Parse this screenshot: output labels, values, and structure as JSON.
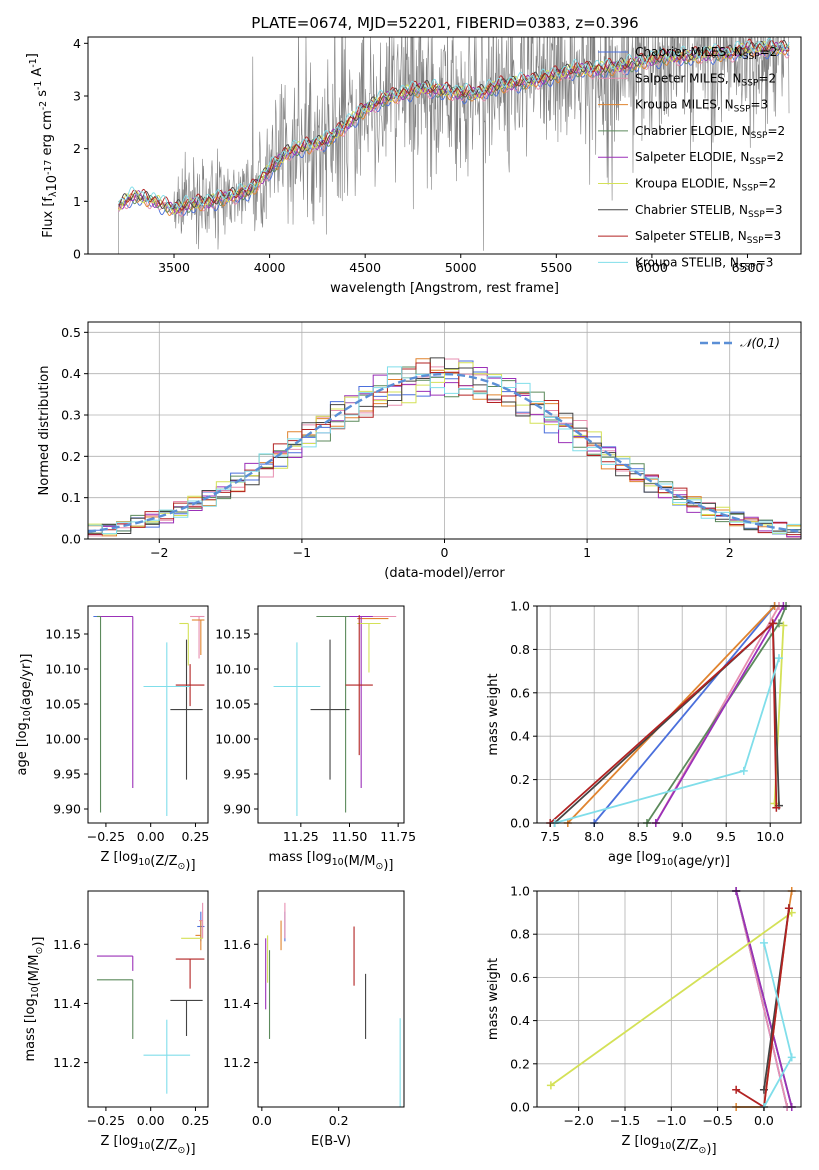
{
  "figure": {
    "title": "PLATE=0674, MJD=52201, FIBERID=0383, z=0.396"
  },
  "series_styles": [
    {
      "name": "Chabrier MILES, N$_{SSP}$=2",
      "label_main": "Chabrier MILES, N",
      "label_sub": "SSP",
      "label_tail": "=2",
      "color": "#4a6fdc"
    },
    {
      "name": "Salpeter MILES, N$_{SSP}$=2",
      "label_main": "Salpeter MILES, N",
      "label_sub": "SSP",
      "label_tail": "=2",
      "color": "#e78fb0"
    },
    {
      "name": "Kroupa MILES, N$_{SSP}$=3",
      "label_main": "Kroupa MILES, N",
      "label_sub": "SSP",
      "label_tail": "=3",
      "color": "#e0842f"
    },
    {
      "name": "Chabrier ELODIE, N$_{SSP}$=2",
      "label_main": "Chabrier ELODIE, N",
      "label_sub": "SSP",
      "label_tail": "=2",
      "color": "#5c8a5c"
    },
    {
      "name": "Salpeter ELODIE, N$_{SSP}$=2",
      "label_main": "Salpeter ELODIE, N",
      "label_sub": "SSP",
      "label_tail": "=2",
      "color": "#9b30b8"
    },
    {
      "name": "Kroupa ELODIE, N$_{SSP}$=2",
      "label_main": "Kroupa ELODIE, N",
      "label_sub": "SSP",
      "label_tail": "=2",
      "color": "#d4e157"
    },
    {
      "name": "Chabrier STELIB, N$_{SSP}$=3",
      "label_main": "Chabrier STELIB, N",
      "label_sub": "SSP",
      "label_tail": "=3",
      "color": "#444444"
    },
    {
      "name": "Salpeter STELIB, N$_{SSP}$=3",
      "label_main": "Salpeter STELIB, N",
      "label_sub": "SSP",
      "label_tail": "=3",
      "color": "#b22222"
    },
    {
      "name": "Kroupa STELIB, N$_{SSP}$=3",
      "label_main": "Kroupa STELIB, N",
      "label_sub": "SSP",
      "label_tail": "=3",
      "color": "#80deea"
    }
  ],
  "chart_data": [
    {
      "id": "spectrum",
      "type": "line",
      "xlabel": "wavelength [Angstrom, rest frame]",
      "ylabel": "Flux [f$_\\lambda$10$^{-17}$ erg cm$^{-2}$ s$^{-1}$ A$^{-1}$]",
      "xlim": [
        3050,
        6780
      ],
      "ylim": [
        0,
        4.12
      ],
      "xticks": [
        3500,
        4000,
        4500,
        5000,
        5500,
        6000,
        6500
      ],
      "yticks": [
        0,
        1,
        2,
        3,
        4
      ],
      "data_color": "#808080",
      "data_start": 3210,
      "model_continuum": {
        "wavelength": [
          3210,
          3260,
          3300,
          3400,
          3500,
          3600,
          3700,
          3800,
          3900,
          4000,
          4100,
          4200,
          4300,
          4400,
          4500,
          4600,
          4700,
          4800,
          4900,
          5000,
          5100,
          5200,
          5300,
          5400,
          5500,
          5600,
          5700,
          5800,
          5900,
          6000,
          6100,
          6200,
          6300,
          6400,
          6500,
          6600
        ],
        "flux": [
          0.9,
          1.05,
          1.1,
          1.0,
          0.85,
          0.95,
          1.0,
          1.1,
          1.2,
          1.6,
          1.95,
          2.05,
          2.15,
          2.45,
          2.75,
          2.95,
          3.05,
          3.15,
          3.1,
          3.05,
          3.05,
          3.2,
          3.25,
          3.3,
          3.4,
          3.5,
          3.5,
          3.55,
          3.6,
          3.7,
          3.75,
          3.75,
          3.8,
          3.8,
          3.9,
          3.9
        ]
      },
      "legend_position": "upper right"
    },
    {
      "id": "residuals",
      "type": "histogram",
      "xlabel": "(data-model)/error",
      "ylabel": "Normed distribution",
      "xlim": [
        -2.5,
        2.5
      ],
      "ylim": [
        0,
        0.525
      ],
      "xticks": [
        -2,
        -1,
        0,
        1,
        2
      ],
      "yticks": [
        0.0,
        0.1,
        0.2,
        0.3,
        0.4,
        0.5
      ],
      "bin_edges_start": -2.5,
      "bin_width": 0.1,
      "bins": 50,
      "reference_curve": {
        "name": "$\\mathcal{N}(0,1)$",
        "color": "#5b8fd6",
        "style": "dashed"
      },
      "grid": true
    },
    {
      "id": "age_vs_Z",
      "type": "scatter",
      "xlabel": "Z [log$_{10}$(Z/Z$_\\odot$)]",
      "ylabel": "age  [log$_{10}$(age/yr)]",
      "xlim": [
        -0.35,
        0.32
      ],
      "ylim": [
        9.88,
        10.19
      ],
      "xticks": [
        -0.25,
        0.0,
        0.25
      ],
      "yticks": [
        9.9,
        9.95,
        10.0,
        10.05,
        10.1,
        10.15
      ],
      "points": [
        {
          "series": 0,
          "x": -0.1,
          "y": 10.175,
          "xerr": [
            0.22,
            0.0
          ],
          "yerr": [
            0.0,
            0.0
          ]
        },
        {
          "series": 1,
          "x": 0.27,
          "y": 10.175,
          "xerr": [
            0.05,
            0.03
          ],
          "yerr": [
            0.06,
            0.0
          ]
        },
        {
          "series": 2,
          "x": 0.28,
          "y": 10.17,
          "xerr": [
            0.05,
            0.02
          ],
          "yerr": [
            0.05,
            0.0
          ]
        },
        {
          "series": 3,
          "x": -0.28,
          "y": 10.175,
          "xerr": [
            0.02,
            0.0
          ],
          "yerr": [
            0.28,
            0.0
          ]
        },
        {
          "series": 4,
          "x": -0.1,
          "y": 10.175,
          "xerr": [
            0.18,
            0.0
          ],
          "yerr": [
            0.245,
            0.0
          ]
        },
        {
          "series": 5,
          "x": 0.21,
          "y": 10.165,
          "xerr": [
            0.05,
            0.0
          ],
          "yerr": [
            0.06,
            0.0
          ]
        },
        {
          "series": 6,
          "x": 0.2,
          "y": 10.042,
          "xerr": [
            0.09,
            0.09
          ],
          "yerr": [
            0.1,
            0.1
          ]
        },
        {
          "series": 7,
          "x": 0.22,
          "y": 10.077,
          "xerr": [
            0.08,
            0.08
          ],
          "yerr": [
            0.03,
            0.03
          ]
        },
        {
          "series": 8,
          "x": 0.09,
          "y": 10.075,
          "xerr": [
            0.13,
            0.13
          ],
          "yerr": [
            0.185,
            0.063
          ]
        }
      ]
    },
    {
      "id": "age_vs_mass",
      "type": "scatter",
      "xlabel": "mass [log$_{10}$(M/M$_\\odot$)]",
      "ylabel": "",
      "xlim": [
        11.03,
        11.78
      ],
      "ylim": [
        9.88,
        10.19
      ],
      "xticks": [
        11.25,
        11.5,
        11.75
      ],
      "yticks": [
        9.9,
        9.95,
        10.0,
        10.05,
        10.1,
        10.15
      ],
      "points": [
        {
          "series": 0,
          "x": 11.55,
          "y": 10.175,
          "xerr": [
            0.06,
            0.06
          ],
          "yerr": [
            0.0,
            0.0
          ]
        },
        {
          "series": 1,
          "x": 11.68,
          "y": 10.175,
          "xerr": [
            0.1,
            0.06
          ],
          "yerr": [
            0.0,
            0.0
          ]
        },
        {
          "series": 2,
          "x": 11.64,
          "y": 10.172,
          "xerr": [
            0.1,
            0.06
          ],
          "yerr": [
            0.0,
            0.0
          ]
        },
        {
          "series": 3,
          "x": 11.48,
          "y": 10.175,
          "xerr": [
            0.15,
            0.1
          ],
          "yerr": [
            0.28,
            0.0
          ]
        },
        {
          "series": 4,
          "x": 11.56,
          "y": 10.175,
          "xerr": [
            0.06,
            0.06
          ],
          "yerr": [
            0.245,
            0.0
          ]
        },
        {
          "series": 5,
          "x": 11.6,
          "y": 10.165,
          "xerr": [
            0.06,
            0.06
          ],
          "yerr": [
            0.07,
            0.0
          ]
        },
        {
          "series": 6,
          "x": 11.4,
          "y": 10.042,
          "xerr": [
            0.1,
            0.1
          ],
          "yerr": [
            0.1,
            0.1
          ]
        },
        {
          "series": 7,
          "x": 11.55,
          "y": 10.077,
          "xerr": [
            0.07,
            0.07
          ],
          "yerr": [
            0.1,
            0.1
          ]
        },
        {
          "series": 8,
          "x": 11.23,
          "y": 10.075,
          "xerr": [
            0.12,
            0.12
          ],
          "yerr": [
            0.185,
            0.063
          ]
        }
      ]
    },
    {
      "id": "weight_vs_age",
      "type": "line",
      "xlabel": "age  [log$_{10}$(age/yr)]",
      "ylabel": "mass weight",
      "xlim": [
        7.35,
        10.35
      ],
      "ylim": [
        0,
        1
      ],
      "xticks": [
        7.5,
        8.0,
        8.5,
        9.0,
        9.5,
        10.0
      ],
      "yticks": [
        0.0,
        0.2,
        0.4,
        0.6,
        0.8,
        1.0
      ],
      "grid": true,
      "series": [
        {
          "series": 0,
          "x": [
            8.0,
            10.05
          ],
          "y": [
            0.0,
            1.0
          ]
        },
        {
          "series": 1,
          "x": [
            8.7,
            10.1
          ],
          "y": [
            0.0,
            1.0
          ]
        },
        {
          "series": 2,
          "x": [
            7.7,
            10.05
          ],
          "y": [
            0.0,
            1.0
          ]
        },
        {
          "series": 3,
          "x": [
            8.6,
            10.1,
            10.18
          ],
          "y": [
            0.0,
            0.92,
            1.0
          ]
        },
        {
          "series": 4,
          "x": [
            8.7,
            10.15
          ],
          "y": [
            0.0,
            1.0
          ]
        },
        {
          "series": 5,
          "x": [
            10.05,
            10.15
          ],
          "y": [
            0.09,
            0.91
          ]
        },
        {
          "series": 6,
          "x": [
            7.55,
            10.03,
            10.1
          ],
          "y": [
            0.0,
            0.92,
            0.08
          ]
        },
        {
          "series": 7,
          "x": [
            7.5,
            10.03,
            10.07
          ],
          "y": [
            0.0,
            0.92,
            0.07
          ]
        },
        {
          "series": 8,
          "x": [
            7.55,
            9.7,
            10.1
          ],
          "y": [
            0.0,
            0.24,
            0.76
          ]
        }
      ]
    },
    {
      "id": "mass_vs_Z",
      "type": "scatter",
      "xlabel": "Z [log$_{10}$(Z/Z$_\\odot$)]",
      "ylabel": "mass [log$_{10}$(M/M$_\\odot$)]",
      "xlim": [
        -0.35,
        0.32
      ],
      "ylim": [
        11.05,
        11.78
      ],
      "xticks": [
        -0.25,
        0.0,
        0.25
      ],
      "yticks": [
        11.2,
        11.4,
        11.6
      ],
      "points": [
        {
          "series": 0,
          "x": 0.28,
          "y": 11.66,
          "xerr": [
            0.02,
            0.02
          ],
          "yerr": [
            0.05,
            0.05
          ]
        },
        {
          "series": 1,
          "x": 0.29,
          "y": 11.68,
          "xerr": [
            0.02,
            0.0
          ],
          "yerr": [
            0.06,
            0.06
          ]
        },
        {
          "series": 2,
          "x": 0.28,
          "y": 11.63,
          "xerr": [
            0.03,
            0.0
          ],
          "yerr": [
            0.05,
            0.05
          ]
        },
        {
          "series": 3,
          "x": -0.1,
          "y": 11.48,
          "xerr": [
            0.2,
            0.0
          ],
          "yerr": [
            0.2,
            0.0
          ]
        },
        {
          "series": 4,
          "x": -0.1,
          "y": 11.56,
          "xerr": [
            0.2,
            0.0
          ],
          "yerr": [
            0.05,
            0.0
          ]
        },
        {
          "series": 5,
          "x": 0.24,
          "y": 11.62,
          "xerr": [
            0.07,
            0.05
          ],
          "yerr": [
            0.0,
            0.0
          ]
        },
        {
          "series": 6,
          "x": 0.2,
          "y": 11.41,
          "xerr": [
            0.09,
            0.09
          ],
          "yerr": [
            0.12,
            0.0
          ]
        },
        {
          "series": 7,
          "x": 0.22,
          "y": 11.55,
          "xerr": [
            0.08,
            0.08
          ],
          "yerr": [
            0.1,
            0.0
          ]
        },
        {
          "series": 8,
          "x": 0.09,
          "y": 11.225,
          "xerr": [
            0.13,
            0.13
          ],
          "yerr": [
            0.13,
            0.12
          ]
        }
      ]
    },
    {
      "id": "mass_vs_ebv",
      "type": "scatter",
      "xlabel": "E(B-V)",
      "ylabel": "",
      "xlim": [
        -0.01,
        0.37
      ],
      "ylim": [
        11.05,
        11.78
      ],
      "xticks": [
        0.0,
        0.2
      ],
      "yticks": [
        11.2,
        11.4,
        11.6
      ],
      "points": [
        {
          "series": 0,
          "x": 0.06,
          "y": 11.66,
          "xerr": [
            0.0,
            0.0
          ],
          "yerr": [
            0.05,
            0.05
          ]
        },
        {
          "series": 1,
          "x": 0.06,
          "y": 11.68,
          "xerr": [
            0.0,
            0.0
          ],
          "yerr": [
            0.06,
            0.06
          ]
        },
        {
          "series": 2,
          "x": 0.05,
          "y": 11.63,
          "xerr": [
            0.0,
            0.0
          ],
          "yerr": [
            0.05,
            0.05
          ]
        },
        {
          "series": 3,
          "x": 0.02,
          "y": 11.43,
          "xerr": [
            0.0,
            0.0
          ],
          "yerr": [
            0.15,
            0.15
          ]
        },
        {
          "series": 4,
          "x": 0.01,
          "y": 11.5,
          "xerr": [
            0.0,
            0.0
          ],
          "yerr": [
            0.12,
            0.12
          ]
        },
        {
          "series": 5,
          "x": 0.015,
          "y": 11.55,
          "xerr": [
            0.0,
            0.0
          ],
          "yerr": [
            0.08,
            0.08
          ]
        },
        {
          "series": 6,
          "x": 0.27,
          "y": 11.39,
          "xerr": [
            0.0,
            0.0
          ],
          "yerr": [
            0.11,
            0.11
          ]
        },
        {
          "series": 7,
          "x": 0.24,
          "y": 11.56,
          "xerr": [
            0.0,
            0.0
          ],
          "yerr": [
            0.1,
            0.1
          ]
        },
        {
          "series": 8,
          "x": 0.36,
          "y": 11.2,
          "xerr": [
            0.0,
            0.0
          ],
          "yerr": [
            0.15,
            0.15
          ]
        }
      ]
    },
    {
      "id": "weight_vs_Z",
      "type": "line",
      "xlabel": "Z [log$_{10}$(Z/Z$_\\odot$)]",
      "ylabel": "mass weight",
      "xlim": [
        -2.45,
        0.4
      ],
      "ylim": [
        0,
        1
      ],
      "xticks": [
        -2.0,
        -1.5,
        -1.0,
        -0.5,
        0.0
      ],
      "yticks": [
        0.0,
        0.2,
        0.4,
        0.6,
        0.8,
        1.0
      ],
      "grid": true,
      "series": [
        {
          "series": 0,
          "x": [
            -0.3,
            0.25
          ],
          "y": [
            1.0,
            0.0
          ]
        },
        {
          "series": 1,
          "x": [
            -0.3,
            0.25
          ],
          "y": [
            1.0,
            0.0
          ]
        },
        {
          "series": 2,
          "x": [
            -0.3,
            0.0,
            0.27,
            0.3
          ],
          "y": [
            0.0,
            0.0,
            0.92,
            1.0
          ]
        },
        {
          "series": 3,
          "x": [
            -0.3,
            0.3
          ],
          "y": [
            1.0,
            0.0
          ]
        },
        {
          "series": 4,
          "x": [
            -0.3,
            0.3
          ],
          "y": [
            1.0,
            0.0
          ]
        },
        {
          "series": 5,
          "x": [
            -2.3,
            0.3
          ],
          "y": [
            0.1,
            0.9
          ]
        },
        {
          "series": 6,
          "x": [
            0.0,
            0.27
          ],
          "y": [
            0.08,
            0.92
          ]
        },
        {
          "series": 7,
          "x": [
            -0.3,
            0.0,
            0.27
          ],
          "y": [
            0.08,
            0.0,
            0.92
          ]
        },
        {
          "series": 8,
          "x": [
            0.0,
            0.3,
            0.0
          ],
          "y": [
            0.0,
            0.23,
            0.76
          ]
        }
      ]
    }
  ]
}
